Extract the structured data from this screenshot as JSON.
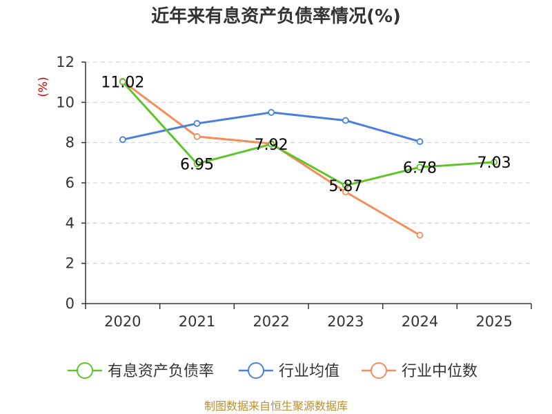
{
  "chart_data": {
    "type": "line",
    "title": "近年来有息资产负债率情况(%)",
    "ylabel": "(%)",
    "xlabel": "",
    "categories": [
      "2020",
      "2021",
      "2022",
      "2023",
      "2024",
      "2025"
    ],
    "ylim": [
      0,
      12
    ],
    "yticks": [
      0,
      2,
      4,
      6,
      8,
      10,
      12
    ],
    "grid": true,
    "legend_position": "bottom",
    "series": [
      {
        "name": "有息资产负债率",
        "color": "#5fc42a",
        "values": [
          11.02,
          6.95,
          7.92,
          5.87,
          6.78,
          7.03
        ],
        "labels": [
          "11.02",
          "6.95",
          "7.92",
          "5.87",
          "6.78",
          "7.03"
        ],
        "show_labels": true
      },
      {
        "name": "行业均值",
        "color": "#4a7fdc",
        "values": [
          8.15,
          8.95,
          9.5,
          9.1,
          8.05,
          null
        ],
        "show_labels": false
      },
      {
        "name": "行业中位数",
        "color": "#f58c5a",
        "values": [
          11.05,
          8.3,
          7.95,
          5.55,
          3.4,
          null
        ],
        "show_labels": false
      }
    ],
    "source": "制图数据来自恒生聚源数据库"
  }
}
